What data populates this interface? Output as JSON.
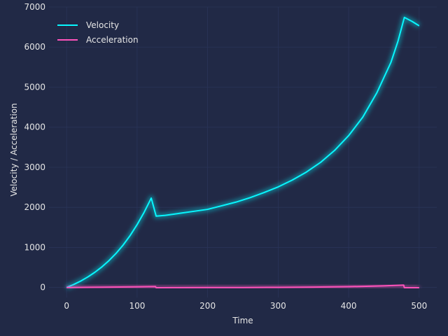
{
  "chart_data": {
    "type": "line",
    "title": "",
    "xlabel": "Time",
    "ylabel": "Velocity / Acceleration",
    "xlim": [
      -25,
      525
    ],
    "ylim": [
      -250,
      7000
    ],
    "xticks": [
      0,
      100,
      200,
      300,
      400,
      500
    ],
    "yticks": [
      0,
      1000,
      2000,
      3000,
      4000,
      5000,
      6000,
      7000
    ],
    "grid": true,
    "legend_position": "top-left",
    "series": [
      {
        "name": "Velocity",
        "color": "#08F7FE",
        "x": [
          0,
          10,
          20,
          30,
          40,
          50,
          60,
          70,
          80,
          90,
          100,
          110,
          120,
          127,
          140,
          160,
          180,
          200,
          220,
          240,
          260,
          280,
          300,
          320,
          340,
          360,
          380,
          400,
          420,
          440,
          460,
          470,
          479,
          490,
          500
        ],
        "y": [
          0,
          74,
          161,
          262,
          379,
          514,
          670,
          849,
          1056,
          1295,
          1570,
          1880,
          2230,
          1780,
          1800,
          1850,
          1900,
          1950,
          2040,
          2130,
          2240,
          2370,
          2510,
          2680,
          2880,
          3120,
          3420,
          3790,
          4250,
          4860,
          5620,
          6150,
          6740,
          6640,
          6530
        ]
      },
      {
        "name": "Acceleration",
        "color": "#FE53BB",
        "x": [
          0,
          50,
          100,
          126,
          127,
          150,
          200,
          250,
          300,
          350,
          400,
          450,
          478,
          479,
          500
        ],
        "y": [
          0,
          8,
          16,
          22,
          -5,
          -4,
          -2,
          0,
          4,
          10,
          20,
          40,
          60,
          -5,
          -5
        ]
      }
    ]
  }
}
